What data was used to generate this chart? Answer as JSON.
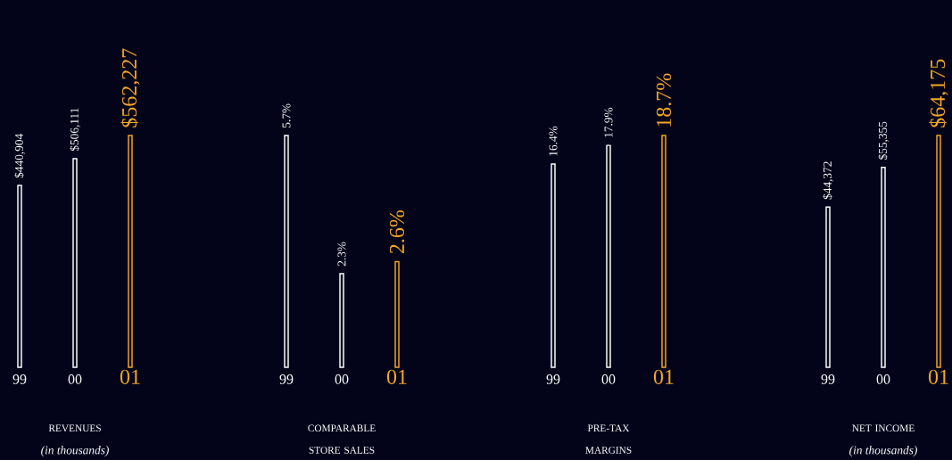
{
  "chart_data": [
    {
      "type": "bar",
      "title": "REVENUES",
      "subtitle": "(in thousands)",
      "categories": [
        "99",
        "00",
        "01"
      ],
      "values": [
        440904,
        506111,
        562227
      ],
      "colors": [
        "#ffffff",
        "#ffffff",
        "#f5a623"
      ],
      "value_labels": [
        "$440,904",
        "$506,111",
        "$562,227"
      ]
    },
    {
      "type": "bar",
      "title": "COMPARABLE STORE SALES",
      "categories": [
        "99",
        "00",
        "01"
      ],
      "values": [
        5.7,
        2.3,
        2.6
      ],
      "colors": [
        "#ffffff",
        "#ffffff",
        "#f5a623"
      ],
      "value_labels": [
        "5.7%",
        "2.3%",
        "2.6%"
      ]
    },
    {
      "type": "bar",
      "title": "PRE-TAX MARGINS",
      "categories": [
        "99",
        "00",
        "01"
      ],
      "values": [
        16.4,
        17.9,
        18.7
      ],
      "colors": [
        "#ffffff",
        "#ffffff",
        "#f5a623"
      ],
      "value_labels": [
        "16.4%",
        "17.9%",
        "18.7%"
      ]
    },
    {
      "type": "bar",
      "title": "NET INCOME",
      "subtitle": "(in thousands)",
      "categories": [
        "99",
        "00",
        "01"
      ],
      "values": [
        44372,
        55355,
        64175
      ],
      "colors": [
        "#ffffff",
        "#ffffff",
        "#f5a623"
      ],
      "value_labels": [
        "$44,372",
        "$55,355",
        "$64,175"
      ]
    }
  ]
}
